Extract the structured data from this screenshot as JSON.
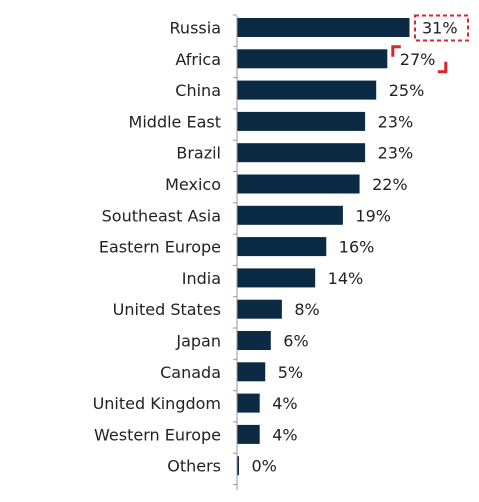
{
  "chart_data": {
    "type": "bar",
    "orientation": "horizontal",
    "categories": [
      "Russia",
      "Africa",
      "China",
      "Middle East",
      "Brazil",
      "Mexico",
      "Southeast Asia",
      "Eastern Europe",
      "India",
      "United States",
      "Japan",
      "Canada",
      "United Kingdom",
      "Western Europe",
      "Others"
    ],
    "values": [
      31,
      27,
      25,
      23,
      23,
      22,
      19,
      16,
      14,
      8,
      6,
      5,
      4,
      4,
      0
    ],
    "value_labels": [
      "31%",
      "27%",
      "25%",
      "23%",
      "23%",
      "22%",
      "19%",
      "16%",
      "14%",
      "8%",
      "6%",
      "5%",
      "4%",
      "4%",
      "0%"
    ],
    "value_unit": "%",
    "xlim": [
      0,
      31
    ],
    "bar_color": "#0b2a44",
    "highlight_color": "#d9262b",
    "highlighted_categories": [
      "Russia",
      "Africa"
    ],
    "grid": false,
    "legend": "none"
  }
}
